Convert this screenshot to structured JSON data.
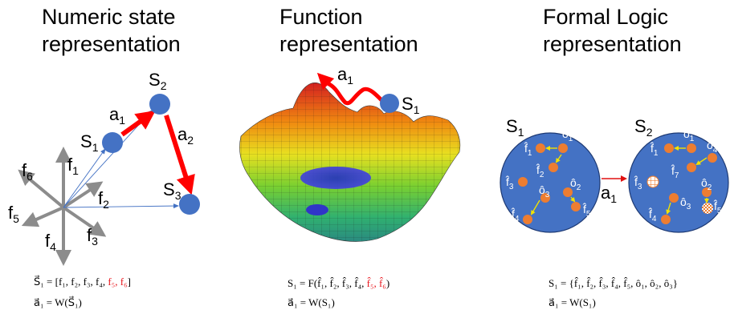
{
  "panels": [
    {
      "title_line1": "Numeric state",
      "title_line2": "representation",
      "labels": {
        "s1": "S",
        "s1_sub": "1",
        "s2": "S",
        "s2_sub": "2",
        "s3": "S",
        "s3_sub": "3",
        "a1": "a",
        "a1_sub": "1",
        "a2": "a",
        "a2_sub": "2",
        "f1": "f",
        "f1_sub": "1",
        "f2": "f",
        "f2_sub": "2",
        "f3": "f",
        "f3_sub": "3",
        "f4": "f",
        "f4_sub": "4",
        "f5": "f",
        "f5_sub": "5",
        "f6": "f",
        "f6_sub": "6"
      },
      "formula1_prefix": "S⃗₁ = [f₁, f₂, f₃, f₄, ",
      "formula1_red": "f₅, f₆",
      "formula1_suffix": "]",
      "formula2": "a⃗₁ = W(S⃗₁)"
    },
    {
      "title_line1": "Function",
      "title_line2": "representation",
      "labels": {
        "a1": "a",
        "a1_sub": "1",
        "s1": "S",
        "s1_sub": "1"
      },
      "formula1_prefix": "S₁ = F(f̂₁, f̂₂, f̂₃, f̂₄, ",
      "formula1_red": "f̂₅, f̂₆",
      "formula1_suffix": ")",
      "formula2": "a⃗₁ = W(S₁)"
    },
    {
      "title_line1": "Formal Logic",
      "title_line2": "representation",
      "labels": {
        "s1": "S",
        "s1_sub": "1",
        "s2": "S",
        "s2_sub": "2",
        "a1": "a",
        "a1_sub": "1",
        "f1": "f̂",
        "f1_sub": "1",
        "f2": "f̂",
        "f2_sub": "2",
        "f3": "f̂",
        "f3_sub": "3",
        "f4": "f̂",
        "f4_sub": "4",
        "f5": "f̂",
        "f5_sub": "5",
        "f7": "f̂",
        "f7_sub": "7",
        "o1": "ô",
        "o1_sub": "1",
        "o2": "ô",
        "o2_sub": "2",
        "o3": "ô",
        "o3_sub": "3",
        "o4": "ô",
        "o4_sub": "4"
      },
      "formula1": "S₁ = {f̂₁, f̂₂, f̂₃, f̂₄, f̂₅, ô₁, ô₂, ô₃}",
      "formula2": "a⃗₁ = W(S₁)"
    }
  ],
  "colors": {
    "node_blue": "#4472c4",
    "arrow_red": "#ff0000",
    "axis_gray": "#8c8c8c",
    "dot_orange": "#ed7d31",
    "inner_arrow": "#f2e200",
    "circle_blue": "#4472c4"
  }
}
